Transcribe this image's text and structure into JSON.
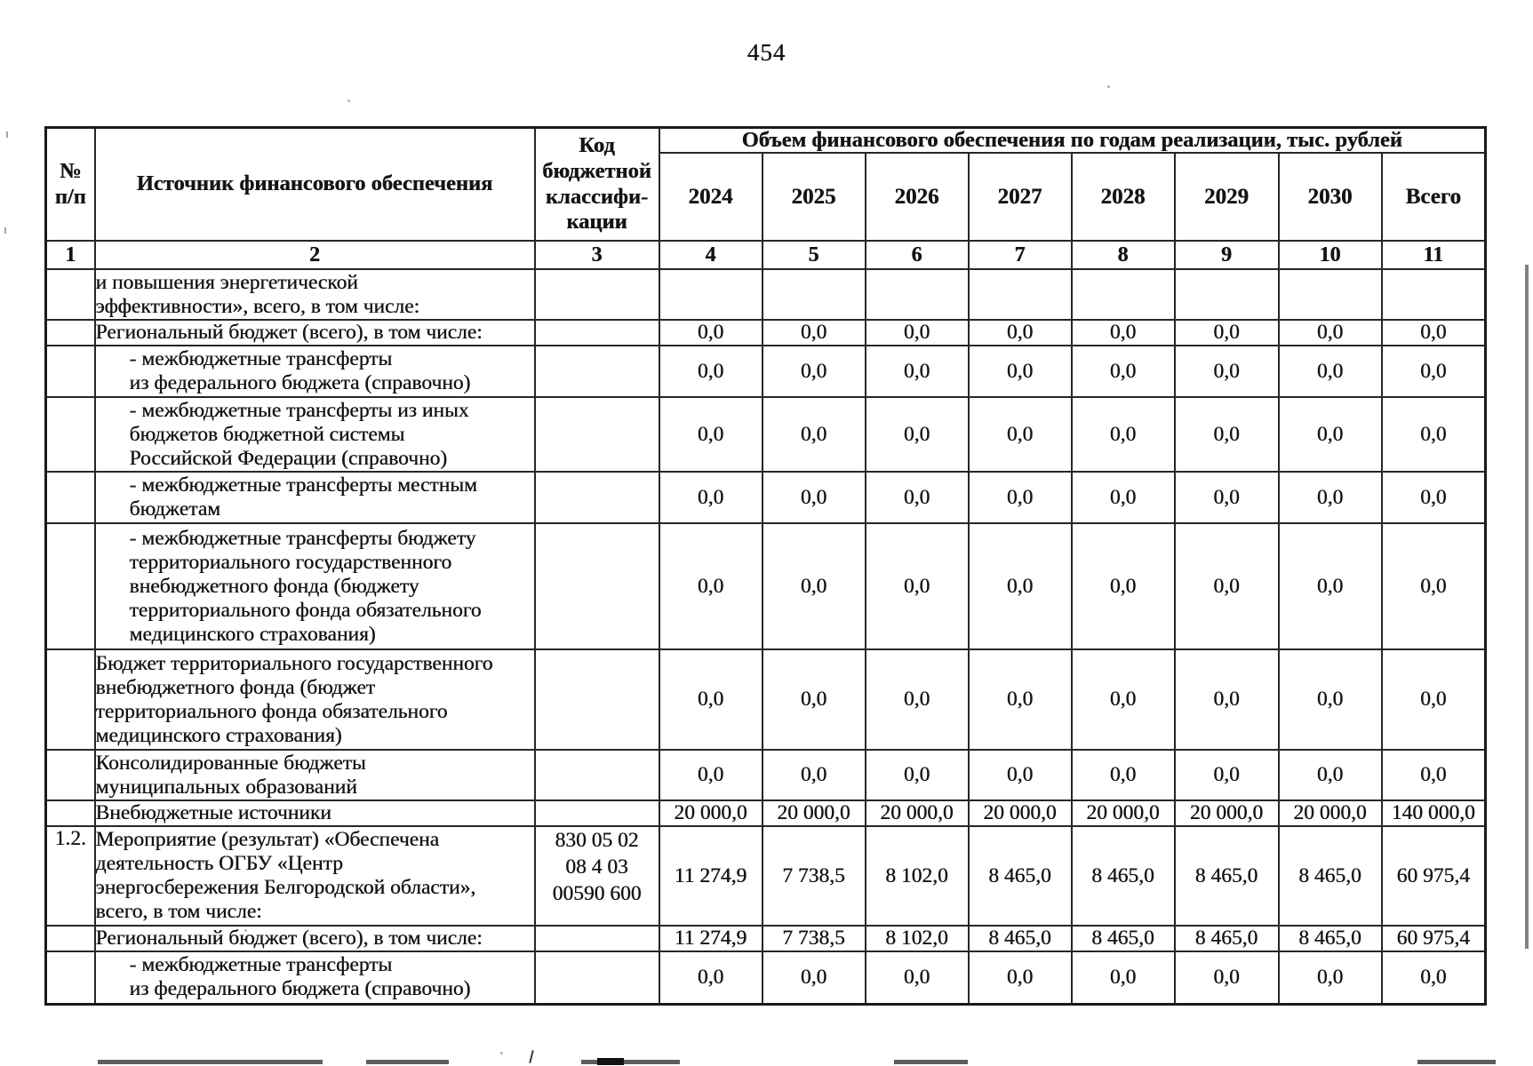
{
  "page_number": "454",
  "table": {
    "header": {
      "num": "№\nп/п",
      "source": "Источник финансового обеспечения",
      "code": "Код\nбюджетной\nклассифи-\nкации",
      "band": "Объем финансового обеспечения по годам реализации, тыс. рублей",
      "years": [
        "2024",
        "2025",
        "2026",
        "2027",
        "2028",
        "2029",
        "2030",
        "Всего"
      ],
      "col_numbers": [
        "1",
        "2",
        "3",
        "4",
        "5",
        "6",
        "7",
        "8",
        "9",
        "10",
        "11"
      ]
    },
    "rows": [
      {
        "num": "",
        "label": "и повышения энергетической\nэффективности», всего, в том числе:",
        "indent": false,
        "code": "",
        "values": [
          "",
          "",
          "",
          "",
          "",
          "",
          "",
          ""
        ]
      },
      {
        "num": "",
        "label": "Региональный бюджет (всего), в том числе:",
        "indent": false,
        "code": "",
        "values": [
          "0,0",
          "0,0",
          "0,0",
          "0,0",
          "0,0",
          "0,0",
          "0,0",
          "0,0"
        ]
      },
      {
        "num": "",
        "label": "- межбюджетные трансферты\nиз федерального бюджета (справочно)",
        "indent": true,
        "code": "",
        "values": [
          "0,0",
          "0,0",
          "0,0",
          "0,0",
          "0,0",
          "0,0",
          "0,0",
          "0,0"
        ]
      },
      {
        "num": "",
        "label": "- межбюджетные трансферты из иных\nбюджетов бюджетной системы\nРоссийской Федерации (справочно)",
        "indent": true,
        "code": "",
        "values": [
          "0,0",
          "0,0",
          "0,0",
          "0,0",
          "0,0",
          "0,0",
          "0,0",
          "0,0"
        ]
      },
      {
        "num": "",
        "label": "- межбюджетные трансферты местным\nбюджетам",
        "indent": true,
        "code": "",
        "values": [
          "0,0",
          "0,0",
          "0,0",
          "0,0",
          "0,0",
          "0,0",
          "0,0",
          "0,0"
        ]
      },
      {
        "num": "",
        "label": "- межбюджетные трансферты бюджету\nтерриториального государственного\nвнебюджетного фонда (бюджету\nтерриториального фонда обязательного\nмедицинского страхования)",
        "indent": true,
        "code": "",
        "values": [
          "0,0",
          "0,0",
          "0,0",
          "0,0",
          "0,0",
          "0,0",
          "0,0",
          "0,0"
        ]
      },
      {
        "num": "",
        "label": "Бюджет территориального государственного\nвнебюджетного фонда (бюджет\nтерриториального фонда обязательного\nмедицинского страхования)",
        "indent": false,
        "code": "",
        "values": [
          "0,0",
          "0,0",
          "0,0",
          "0,0",
          "0,0",
          "0,0",
          "0,0",
          "0,0"
        ]
      },
      {
        "num": "",
        "label": "Консолидированные бюджеты\nмуниципальных образований",
        "indent": false,
        "code": "",
        "values": [
          "0,0",
          "0,0",
          "0,0",
          "0,0",
          "0,0",
          "0,0",
          "0,0",
          "0,0"
        ]
      },
      {
        "num": "",
        "label": "Внебюджетные источники",
        "indent": false,
        "code": "",
        "values": [
          "20 000,0",
          "20 000,0",
          "20 000,0",
          "20 000,0",
          "20 000,0",
          "20 000,0",
          "20 000,0",
          "140 000,0"
        ]
      },
      {
        "num": "1.2.",
        "label": "Мероприятие (результат) «Обеспечена\nдеятельность ОГБУ «Центр\nэнергосбережения Белгородской области»,\nвсего, в том числе:",
        "indent": false,
        "code": "830 05 02\n08 4 03\n00590 600",
        "values": [
          "11 274,9",
          "7 738,5",
          "8 102,0",
          "8 465,0",
          "8 465,0",
          "8 465,0",
          "8 465,0",
          "60 975,4"
        ]
      },
      {
        "num": "",
        "label": "Региональный бюджет (всего), в том числе:",
        "indent": false,
        "code": "",
        "values": [
          "11 274,9",
          "7 738,5",
          "8 102,0",
          "8 465,0",
          "8 465,0",
          "8 465,0",
          "8 465,0",
          "60 975,4"
        ]
      },
      {
        "num": "",
        "label": "- межбюджетные трансферты\nиз федерального бюджета (справочно)",
        "indent": true,
        "code": "",
        "values": [
          "0,0",
          "0,0",
          "0,0",
          "0,0",
          "0,0",
          "0,0",
          "0,0",
          "0,0"
        ]
      }
    ]
  }
}
